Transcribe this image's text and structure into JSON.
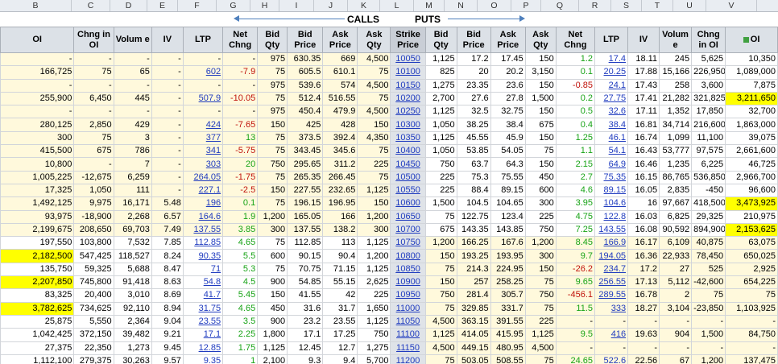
{
  "column_letters": [
    "B",
    "C",
    "D",
    "E",
    "F",
    "G",
    "H",
    "I",
    "J",
    "K",
    "L",
    "M",
    "N",
    "O",
    "P",
    "Q",
    "R",
    "S",
    "T",
    "U",
    "V"
  ],
  "banner": {
    "calls_label": "CALLS",
    "puts_label": "PUTS"
  },
  "headers": [
    "OI",
    "Chng in OI",
    "Volum e",
    "IV",
    "LTP",
    "Net Chng",
    "Bid Qty",
    "Bid Price",
    "Ask Price",
    "Ask Qty",
    "Strike Price",
    "Bid Qty",
    "Bid Price",
    "Ask Price",
    "Ask Qty",
    "Net Chng",
    "LTP",
    "IV",
    "Volum e",
    "Chng in OI",
    "OI"
  ],
  "rows": [
    {
      "calls": [
        "-",
        "-",
        "-",
        "-",
        "-",
        "-",
        "975",
        "630.35",
        "669",
        "4,500"
      ],
      "strike": "10050",
      "puts": [
        "1,125",
        "17.2",
        "17.45",
        "150",
        "1.2",
        "17.4",
        "18.11",
        "245",
        "5,625",
        "10,350"
      ],
      "itm": true
    },
    {
      "calls": [
        "166,725",
        "75",
        "65",
        "-",
        "602",
        "-7.9",
        "75",
        "605.5",
        "610.1",
        "75"
      ],
      "strike": "10100",
      "puts": [
        "825",
        "20",
        "20.2",
        "3,150",
        "0.1",
        "20.25",
        "17.88",
        "15,166",
        "226,950",
        "1,089,000"
      ],
      "itm": true
    },
    {
      "calls": [
        "-",
        "-",
        "-",
        "-",
        "-",
        "-",
        "975",
        "539.6",
        "574",
        "4,500"
      ],
      "strike": "10150",
      "puts": [
        "1,275",
        "23.35",
        "23.6",
        "150",
        "-0.85",
        "24.1",
        "17.43",
        "258",
        "3,600",
        "7,875"
      ],
      "itm": true
    },
    {
      "calls": [
        "255,900",
        "6,450",
        "445",
        "-",
        "507.9",
        "-10.05",
        "75",
        "512.4",
        "516.55",
        "75"
      ],
      "strike": "10200",
      "puts": [
        "2,700",
        "27.6",
        "27.8",
        "1,500",
        "0.2",
        "27.75",
        "17.41",
        "21,282",
        "321,825",
        "3,211,650"
      ],
      "itm": true
    },
    {
      "calls": [
        "-",
        "-",
        "-",
        "-",
        "-",
        "-",
        "975",
        "450.4",
        "479.9",
        "4,500"
      ],
      "strike": "10250",
      "puts": [
        "1,125",
        "32.5",
        "32.75",
        "150",
        "0.5",
        "32.6",
        "17.11",
        "1,352",
        "17,850",
        "32,700"
      ],
      "itm": true
    },
    {
      "calls": [
        "280,125",
        "2,850",
        "429",
        "-",
        "424",
        "-7.65",
        "150",
        "425",
        "428",
        "150"
      ],
      "strike": "10300",
      "puts": [
        "1,050",
        "38.25",
        "38.4",
        "675",
        "0.4",
        "38.4",
        "16.81",
        "34,714",
        "216,600",
        "1,863,000"
      ],
      "itm": true
    },
    {
      "calls": [
        "300",
        "75",
        "3",
        "-",
        "377",
        "13",
        "75",
        "373.5",
        "392.4",
        "4,350"
      ],
      "strike": "10350",
      "puts": [
        "1,125",
        "45.55",
        "45.9",
        "150",
        "1.25",
        "46.1",
        "16.74",
        "1,099",
        "11,100",
        "39,075"
      ],
      "itm": true
    },
    {
      "calls": [
        "415,500",
        "675",
        "786",
        "-",
        "341",
        "-5.75",
        "75",
        "343.45",
        "345.6",
        "75"
      ],
      "strike": "10400",
      "puts": [
        "1,050",
        "53.85",
        "54.05",
        "75",
        "1.1",
        "54.1",
        "16.43",
        "53,777",
        "97,575",
        "2,661,600"
      ],
      "itm": true
    },
    {
      "calls": [
        "10,800",
        "-",
        "7",
        "-",
        "303",
        "20",
        "750",
        "295.65",
        "311.2",
        "225"
      ],
      "strike": "10450",
      "puts": [
        "750",
        "63.7",
        "64.3",
        "150",
        "2.15",
        "64.9",
        "16.46",
        "1,235",
        "6,225",
        "46,725"
      ],
      "itm": true
    },
    {
      "calls": [
        "1,005,225",
        "-12,675",
        "6,259",
        "-",
        "264.05",
        "-1.75",
        "75",
        "265.35",
        "266.45",
        "75"
      ],
      "strike": "10500",
      "puts": [
        "225",
        "75.3",
        "75.55",
        "450",
        "2.7",
        "75.35",
        "16.15",
        "86,765",
        "536,850",
        "2,966,700"
      ],
      "itm": true
    },
    {
      "calls": [
        "17,325",
        "1,050",
        "111",
        "-",
        "227.1",
        "-2.5",
        "150",
        "227.55",
        "232.65",
        "1,125"
      ],
      "strike": "10550",
      "puts": [
        "225",
        "88.4",
        "89.15",
        "600",
        "4.6",
        "89.15",
        "16.05",
        "2,835",
        "-450",
        "96,600"
      ],
      "itm": true
    },
    {
      "calls": [
        "1,492,125",
        "9,975",
        "16,171",
        "5.48",
        "196",
        "0.1",
        "75",
        "196.15",
        "196.95",
        "150"
      ],
      "strike": "10600",
      "puts": [
        "1,500",
        "104.5",
        "104.65",
        "300",
        "3.95",
        "104.6",
        "16",
        "97,667",
        "418,500",
        "3,473,925"
      ],
      "itm": true
    },
    {
      "calls": [
        "93,975",
        "-18,900",
        "2,268",
        "6.57",
        "164.6",
        "1.9",
        "1,200",
        "165.05",
        "166",
        "1,200"
      ],
      "strike": "10650",
      "puts": [
        "75",
        "122.75",
        "123.4",
        "225",
        "4.75",
        "122.8",
        "16.03",
        "6,825",
        "29,325",
        "210,975"
      ],
      "itm": true
    },
    {
      "calls": [
        "2,199,675",
        "208,650",
        "69,703",
        "7.49",
        "137.55",
        "3.85",
        "300",
        "137.55",
        "138.2",
        "300"
      ],
      "strike": "10700",
      "puts": [
        "675",
        "143.35",
        "143.85",
        "750",
        "7.25",
        "143.55",
        "16.08",
        "90,592",
        "894,900",
        "2,153,625"
      ],
      "itm": true
    },
    {
      "calls": [
        "197,550",
        "103,800",
        "7,532",
        "7.85",
        "112.85",
        "4.65",
        "75",
        "112.85",
        "113",
        "1,125"
      ],
      "strike": "10750",
      "puts": [
        "1,200",
        "166.25",
        "167.6",
        "1,200",
        "8.45",
        "166.9",
        "16.17",
        "6,109",
        "40,875",
        "63,075"
      ],
      "itm": false
    },
    {
      "calls": [
        "2,182,500",
        "547,425",
        "118,527",
        "8.24",
        "90.35",
        "5.5",
        "600",
        "90.15",
        "90.4",
        "1,200"
      ],
      "strike": "10800",
      "puts": [
        "150",
        "193.25",
        "193.95",
        "300",
        "9.7",
        "194.05",
        "16.36",
        "22,933",
        "78,450",
        "650,025"
      ],
      "itm": false
    },
    {
      "calls": [
        "135,750",
        "59,325",
        "5,688",
        "8.47",
        "71",
        "5.3",
        "75",
        "70.75",
        "71.15",
        "1,125"
      ],
      "strike": "10850",
      "puts": [
        "75",
        "214.3",
        "224.95",
        "150",
        "-26.2",
        "234.7",
        "17.2",
        "27",
        "525",
        "2,925"
      ],
      "itm": false
    },
    {
      "calls": [
        "2,207,850",
        "745,800",
        "91,418",
        "8.63",
        "54.8",
        "4.5",
        "900",
        "54.85",
        "55.15",
        "2,625"
      ],
      "strike": "10900",
      "puts": [
        "150",
        "257",
        "258.25",
        "75",
        "9.65",
        "256.55",
        "17.13",
        "5,112",
        "-42,600",
        "654,225"
      ],
      "itm": false
    },
    {
      "calls": [
        "83,325",
        "20,400",
        "3,010",
        "8.69",
        "41.7",
        "5.45",
        "150",
        "41.55",
        "42",
        "225"
      ],
      "strike": "10950",
      "puts": [
        "750",
        "281.4",
        "305.7",
        "750",
        "-456.1",
        "289.55",
        "16.78",
        "2",
        "75",
        "75"
      ],
      "itm": false
    },
    {
      "calls": [
        "3,782,625",
        "734,625",
        "92,110",
        "8.94",
        "31.75",
        "4.65",
        "450",
        "31.6",
        "31.7",
        "1,650"
      ],
      "strike": "11000",
      "puts": [
        "75",
        "329.85",
        "331.7",
        "75",
        "11.5",
        "333",
        "18.27",
        "3,104",
        "-23,850",
        "1,103,925"
      ],
      "itm": false
    },
    {
      "calls": [
        "25,875",
        "5,550",
        "2,364",
        "9.04",
        "23.55",
        "3.5",
        "900",
        "23.2",
        "23.55",
        "1,125"
      ],
      "strike": "11050",
      "puts": [
        "4,500",
        "363.15",
        "391.55",
        "225",
        "-",
        "-",
        "-",
        "-",
        "-",
        "-"
      ],
      "itm": false
    },
    {
      "calls": [
        "1,042,425",
        "372,150",
        "39,482",
        "9.21",
        "17.1",
        "2.25",
        "1,800",
        "17.1",
        "17.25",
        "750"
      ],
      "strike": "11100",
      "puts": [
        "1,125",
        "414.05",
        "415.95",
        "1,125",
        "9.5",
        "416",
        "19.63",
        "904",
        "1,500",
        "84,750"
      ],
      "itm": false
    },
    {
      "calls": [
        "27,375",
        "22,350",
        "1,273",
        "9.45",
        "12.85",
        "1.75",
        "1,125",
        "12.45",
        "12.7",
        "1,275"
      ],
      "strike": "11150",
      "puts": [
        "4,500",
        "449.15",
        "480.95",
        "4,500",
        "-",
        "-",
        "-",
        "-",
        "-",
        "-"
      ],
      "itm": false
    },
    {
      "calls": [
        "1,112,100",
        "279,375",
        "30,263",
        "9.57",
        "9.35",
        "1",
        "2,100",
        "9.3",
        "9.4",
        "5,700"
      ],
      "strike": "11200",
      "puts": [
        "75",
        "503.05",
        "508.55",
        "75",
        "24.65",
        "522.6",
        "22.56",
        "67",
        "1,200",
        "137,475"
      ],
      "itm": false
    }
  ],
  "highlight_values": [
    "3,211,650",
    "3,473,925",
    "2,153,625",
    "2,182,500",
    "2,207,850",
    "3,782,625"
  ],
  "colors": {
    "itm_bg": "#fff9dc",
    "highlight": "#ffff00",
    "positive": "#17a316",
    "negative": "#c0120b",
    "link": "#1f3bbf"
  }
}
